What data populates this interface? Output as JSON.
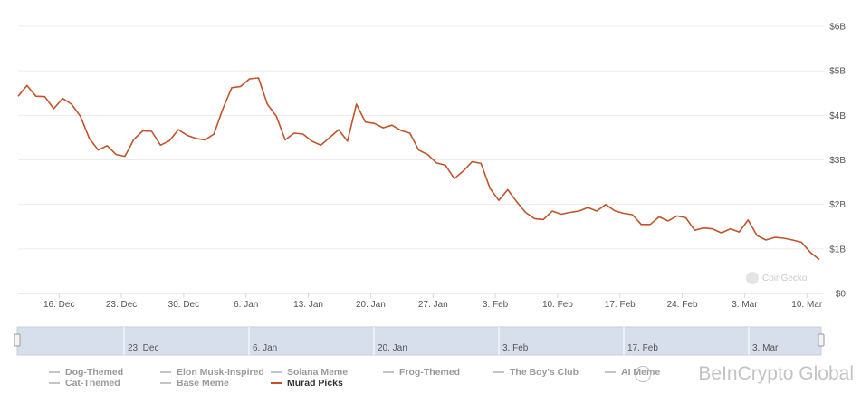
{
  "chart_data": {
    "type": "line",
    "x_ticks": [
      "16. Dec",
      "23. Dec",
      "30. Dec",
      "6. Jan",
      "13. Jan",
      "20. Jan",
      "27. Jan",
      "3. Feb",
      "10. Feb",
      "17. Feb",
      "24. Feb",
      "3. Mar",
      "10. Mar"
    ],
    "y_ticks": [
      "$0",
      "$1B",
      "$2B",
      "$3B",
      "$4B",
      "$5B",
      "$6B"
    ],
    "ylim": [
      0,
      6
    ],
    "y_unit": "billions USD",
    "x_range_days": [
      -4.6,
      85.5
    ],
    "navigator_ticks": [
      "23. Dec",
      "6. Jan",
      "20. Jan",
      "3. Feb",
      "17. Feb",
      "3. Mar"
    ],
    "series": [
      {
        "name": "Murad Picks",
        "color": "#c0532a",
        "points": [
          [
            -4.6,
            4.43
          ],
          [
            -3.6,
            4.67
          ],
          [
            -2.6,
            4.43
          ],
          [
            -1.6,
            4.42
          ],
          [
            -0.6,
            4.15
          ],
          [
            0.4,
            4.38
          ],
          [
            1.4,
            4.25
          ],
          [
            2.4,
            3.98
          ],
          [
            3.4,
            3.48
          ],
          [
            4.4,
            3.22
          ],
          [
            5.4,
            3.32
          ],
          [
            6.4,
            3.12
          ],
          [
            7.4,
            3.08
          ],
          [
            8.4,
            3.46
          ],
          [
            9.4,
            3.65
          ],
          [
            10.4,
            3.64
          ],
          [
            11.4,
            3.33
          ],
          [
            12.4,
            3.43
          ],
          [
            13.4,
            3.68
          ],
          [
            14.4,
            3.55
          ],
          [
            15.4,
            3.48
          ],
          [
            16.4,
            3.45
          ],
          [
            17.4,
            3.58
          ],
          [
            18.4,
            4.15
          ],
          [
            19.4,
            4.62
          ],
          [
            20.4,
            4.65
          ],
          [
            21.4,
            4.82
          ],
          [
            22.4,
            4.84
          ],
          [
            23.4,
            4.25
          ],
          [
            24.4,
            3.98
          ],
          [
            25.4,
            3.45
          ],
          [
            26.4,
            3.6
          ],
          [
            27.4,
            3.58
          ],
          [
            28.4,
            3.42
          ],
          [
            29.4,
            3.33
          ],
          [
            30.4,
            3.5
          ],
          [
            31.4,
            3.68
          ],
          [
            32.4,
            3.42
          ],
          [
            33.4,
            4.25
          ],
          [
            34.4,
            3.85
          ],
          [
            35.4,
            3.82
          ],
          [
            36.4,
            3.72
          ],
          [
            37.4,
            3.78
          ],
          [
            38.4,
            3.66
          ],
          [
            39.4,
            3.6
          ],
          [
            40.4,
            3.22
          ],
          [
            41.4,
            3.12
          ],
          [
            42.4,
            2.93
          ],
          [
            43.4,
            2.88
          ],
          [
            44.4,
            2.58
          ],
          [
            45.4,
            2.75
          ],
          [
            46.4,
            2.96
          ],
          [
            47.4,
            2.92
          ],
          [
            48.4,
            2.36
          ],
          [
            49.4,
            2.09
          ],
          [
            50.4,
            2.33
          ],
          [
            51.4,
            2.06
          ],
          [
            52.4,
            1.82
          ],
          [
            53.4,
            1.68
          ],
          [
            54.4,
            1.66
          ],
          [
            55.4,
            1.85
          ],
          [
            56.4,
            1.78
          ],
          [
            57.4,
            1.82
          ],
          [
            58.4,
            1.85
          ],
          [
            59.4,
            1.93
          ],
          [
            60.4,
            1.85
          ],
          [
            61.4,
            2.0
          ],
          [
            62.4,
            1.86
          ],
          [
            63.4,
            1.8
          ],
          [
            64.4,
            1.77
          ],
          [
            65.4,
            1.55
          ],
          [
            66.4,
            1.55
          ],
          [
            67.4,
            1.72
          ],
          [
            68.4,
            1.63
          ],
          [
            69.4,
            1.74
          ],
          [
            70.4,
            1.7
          ],
          [
            71.4,
            1.42
          ],
          [
            72.4,
            1.47
          ],
          [
            73.4,
            1.45
          ],
          [
            74.4,
            1.36
          ],
          [
            75.4,
            1.45
          ],
          [
            76.4,
            1.38
          ],
          [
            77.4,
            1.65
          ],
          [
            78.4,
            1.3
          ],
          [
            79.4,
            1.2
          ],
          [
            80.4,
            1.26
          ],
          [
            81.4,
            1.24
          ],
          [
            82.4,
            1.2
          ],
          [
            83.4,
            1.15
          ],
          [
            84.4,
            0.92
          ],
          [
            85.4,
            0.76
          ]
        ]
      }
    ],
    "legend": [
      {
        "label": "Dog-Themed",
        "active": false
      },
      {
        "label": "Elon Musk-Inspired",
        "active": false
      },
      {
        "label": "Solana Meme",
        "active": false
      },
      {
        "label": "Frog-Themed",
        "active": false
      },
      {
        "label": "The Boy's Club",
        "active": false
      },
      {
        "label": "AI Meme",
        "active": false
      },
      {
        "label": "Cat-Themed",
        "active": false
      },
      {
        "label": "Base Meme",
        "active": false
      },
      {
        "label": "Murad Picks",
        "active": true
      }
    ],
    "credit": "CoinGecko"
  },
  "watermark": "BeInCrypto Global",
  "colors": {
    "line": "#c0532a",
    "grid": "#ececec",
    "navigator_fill": "#d7dfec",
    "navigator_border": "#c6cfdd",
    "legend_inactive": "#c4c4c4"
  }
}
